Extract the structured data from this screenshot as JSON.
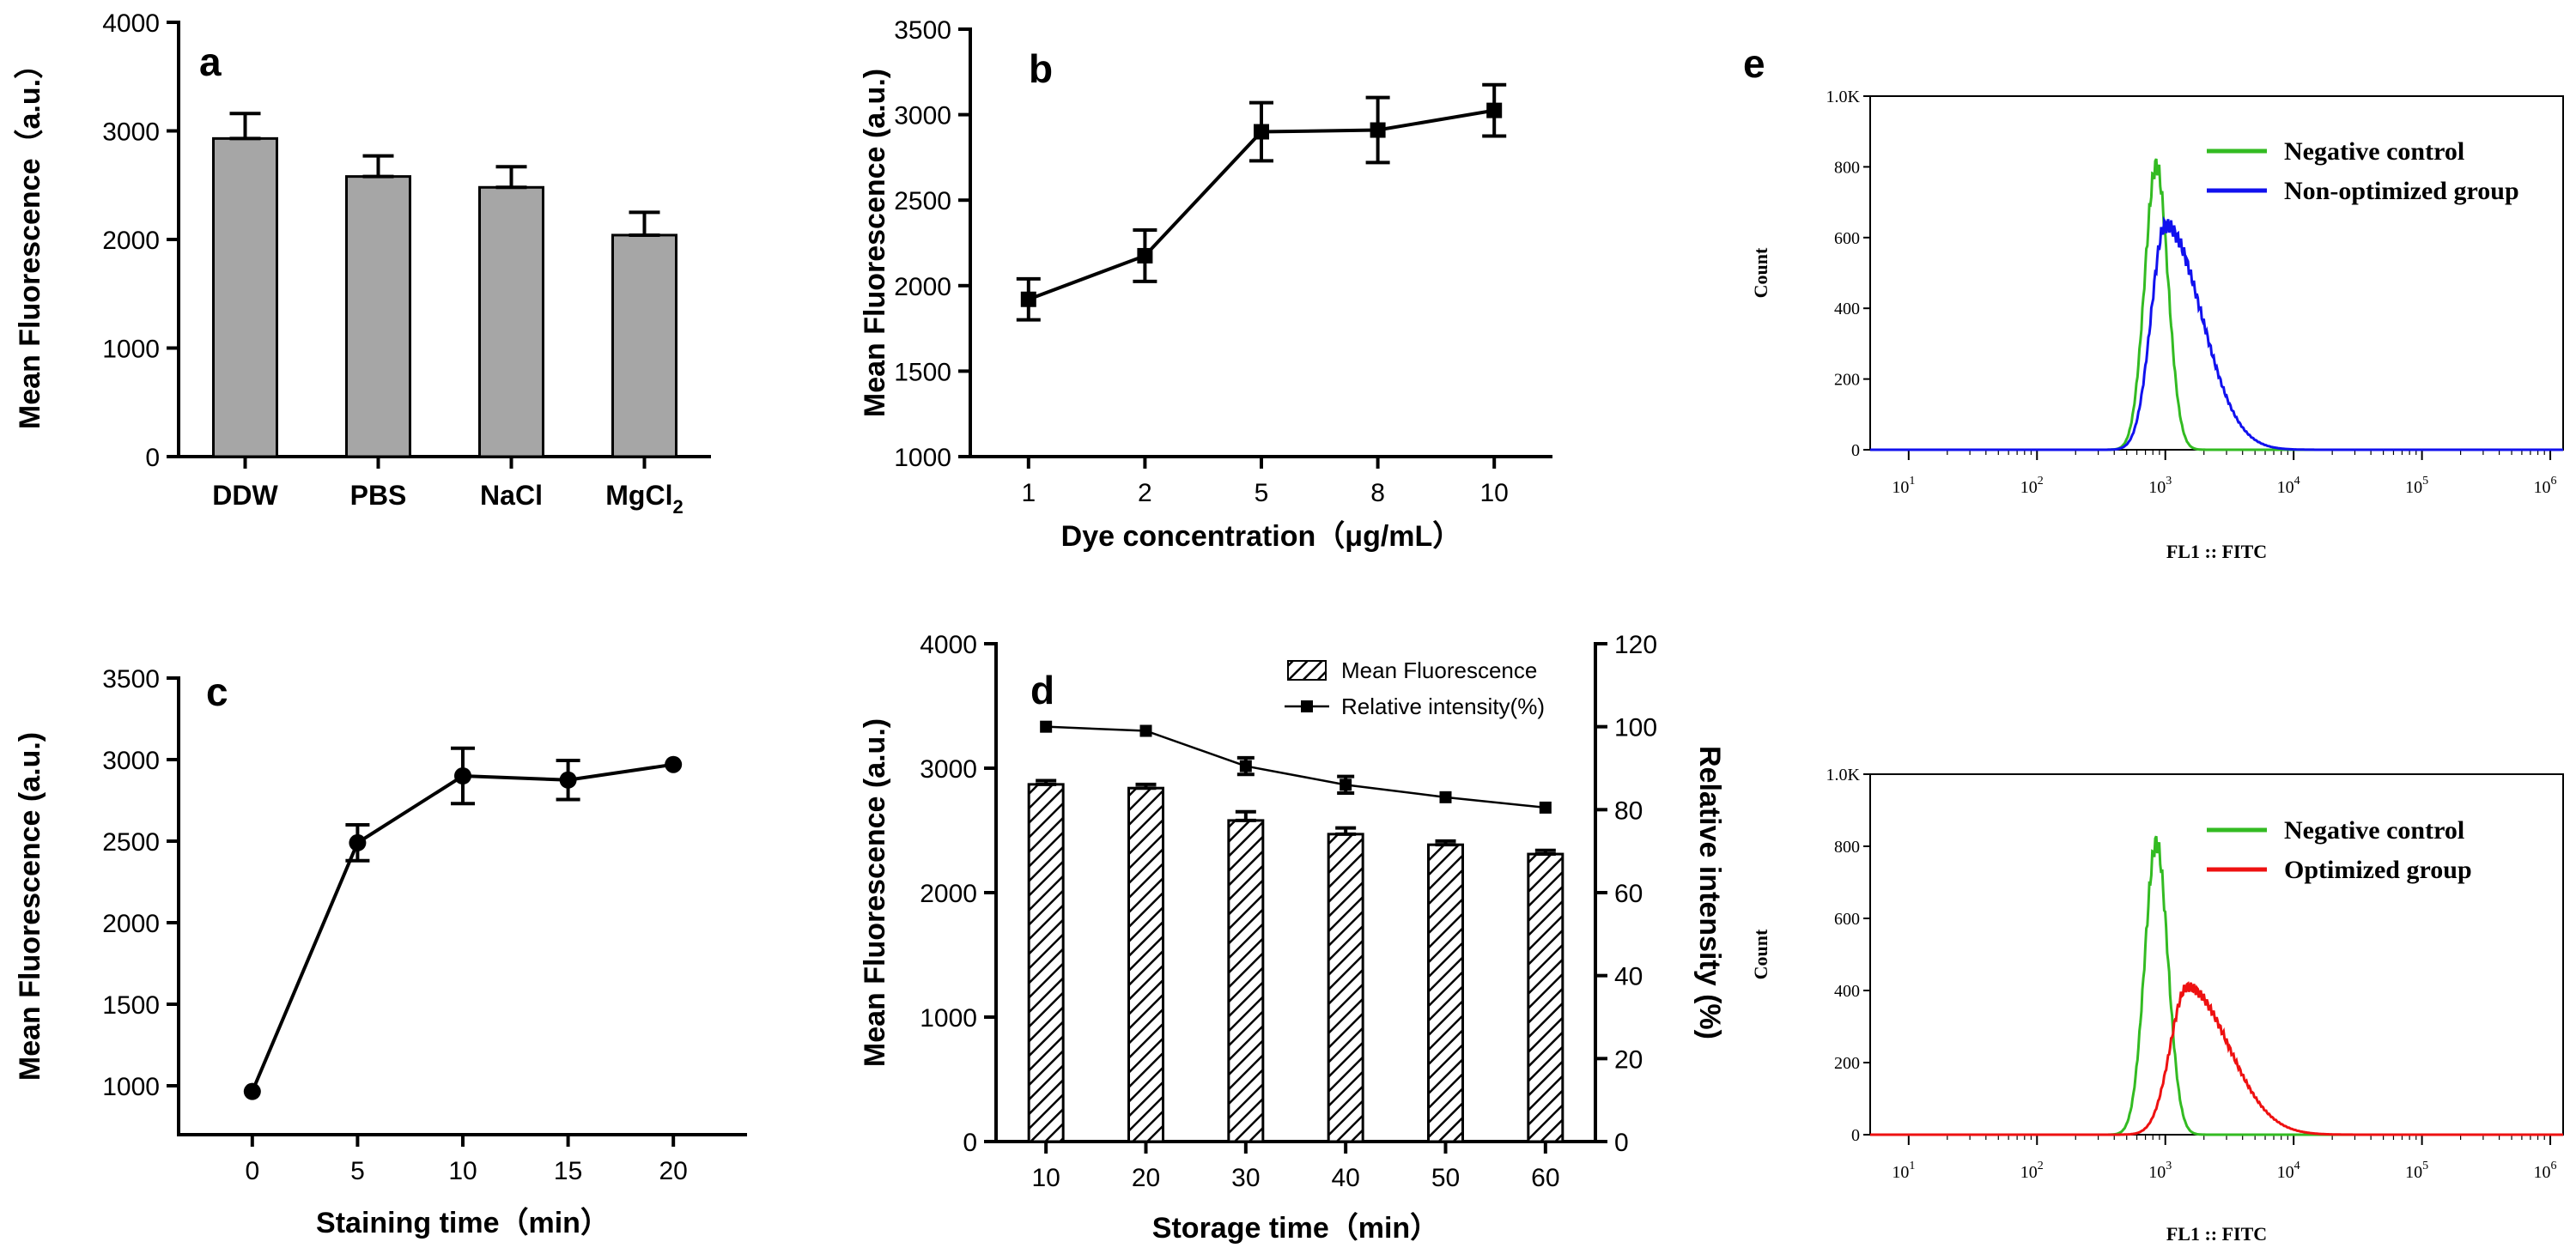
{
  "colors": {
    "bar_gray": "#a6a6a6",
    "green": "#33bb22",
    "blue": "#1111ee",
    "red": "#ee1111"
  },
  "chart_data": [
    {
      "panel": "a",
      "type": "bar",
      "categories": [
        "DDW",
        "PBS",
        "NaCl",
        "MgCl2"
      ],
      "category_labels": [
        {
          "main": "DDW",
          "sub": ""
        },
        {
          "main": "PBS",
          "sub": ""
        },
        {
          "main": "NaCl",
          "sub": ""
        },
        {
          "main": "MgCl",
          "sub": "2"
        }
      ],
      "values": [
        2930,
        2580,
        2480,
        2040
      ],
      "errors": [
        230,
        190,
        190,
        210
      ],
      "ylabel": "Mean Fluorescence（a.u.）",
      "xlabel": "",
      "ylim": [
        0,
        4000
      ],
      "yticks": [
        0,
        1000,
        2000,
        3000,
        4000
      ]
    },
    {
      "panel": "b",
      "type": "line",
      "categories": [
        "1",
        "2",
        "5",
        "8",
        "10"
      ],
      "values": [
        1920,
        2175,
        2900,
        2910,
        3025
      ],
      "errors": [
        120,
        150,
        170,
        190,
        150
      ],
      "ylabel": "Mean Fluorescence (a.u.)",
      "xlabel": "Dye concentration（μg/mL）",
      "ylim": [
        1000,
        3500
      ],
      "yticks": [
        1000,
        1500,
        2000,
        2500,
        3000,
        3500
      ]
    },
    {
      "panel": "c",
      "type": "line",
      "x": [
        0,
        5,
        10,
        15,
        20
      ],
      "values": [
        965,
        2490,
        2900,
        2875,
        2970
      ],
      "errors": [
        0,
        110,
        170,
        120,
        0
      ],
      "ylabel": "Mean Fluorescence (a.u.)",
      "xlabel": "Staining time（min）",
      "xlim": [
        -3.5,
        23.5
      ],
      "xticks": [
        0,
        5,
        10,
        15,
        20
      ],
      "ylim": [
        700,
        3500
      ],
      "yticks": [
        1000,
        1500,
        2000,
        2500,
        3000,
        3500
      ]
    },
    {
      "panel": "d",
      "type": "bar",
      "categories": [
        "10",
        "20",
        "30",
        "40",
        "50",
        "60"
      ],
      "series": [
        {
          "name": "Mean Fluorescence",
          "axis": "left",
          "values": [
            2870,
            2840,
            2580,
            2470,
            2385,
            2310
          ],
          "errors": [
            30,
            30,
            70,
            50,
            30,
            30
          ]
        },
        {
          "name": "Relative intensity(%)",
          "axis": "right",
          "type": "line",
          "values": [
            100,
            99,
            90.5,
            86,
            83,
            80.5
          ],
          "errors": [
            0,
            0,
            2,
            2,
            0,
            0
          ]
        }
      ],
      "ylabel": "Mean Fluorescence  (a.u.)",
      "y2label": "Relative intensity (%)",
      "xlabel": "Storage time（min）",
      "ylim": [
        0,
        4000
      ],
      "yticks": [
        0,
        1000,
        2000,
        3000,
        4000
      ],
      "y2lim": [
        0,
        120
      ],
      "y2ticks": [
        0,
        20,
        40,
        60,
        80,
        100,
        120
      ],
      "legend": "top-right"
    },
    {
      "panel": "e",
      "type": "histogram",
      "subplots": [
        {
          "xlabel": "FL1 :: FITC",
          "ylabel": "Count",
          "yticks": [
            0,
            200,
            400,
            600,
            800
          ],
          "ytick_top": "1.0K",
          "ylim": [
            0,
            1000
          ],
          "xlim_log10": [
            0.7,
            6.1
          ],
          "xtick_bases": [
            "10",
            "10",
            "10",
            "10",
            "10",
            "10"
          ],
          "xtick_exponents": [
            "1",
            "2",
            "3",
            "4",
            "5",
            "6"
          ],
          "series": [
            {
              "name": "Negative control",
              "color": "#33bb22",
              "peak_log10": 2.93,
              "sigma": 0.09,
              "peak_count": 805
            },
            {
              "name": "Non-optimized group",
              "color": "#1111ee",
              "peak_log10": 3.0,
              "sigma": 0.11,
              "tail": 0.28,
              "peak_count": 635
            }
          ]
        },
        {
          "xlabel": "FL1 :: FITC",
          "ylabel": "Count",
          "yticks": [
            0,
            200,
            400,
            600,
            800
          ],
          "ytick_top": "1.0K",
          "ylim": [
            0,
            1000
          ],
          "xlim_log10": [
            0.7,
            6.1
          ],
          "xtick_bases": [
            "10",
            "10",
            "10",
            "10",
            "10",
            "10"
          ],
          "xtick_exponents": [
            "1",
            "2",
            "3",
            "4",
            "5",
            "6"
          ],
          "series": [
            {
              "name": "Negative control",
              "color": "#33bb22",
              "peak_log10": 2.93,
              "sigma": 0.09,
              "peak_count": 810
            },
            {
              "name": "Optimized group",
              "color": "#ee1111",
              "peak_log10": 3.17,
              "sigma": 0.13,
              "tail": 0.32,
              "peak_count": 410
            }
          ]
        }
      ]
    }
  ]
}
